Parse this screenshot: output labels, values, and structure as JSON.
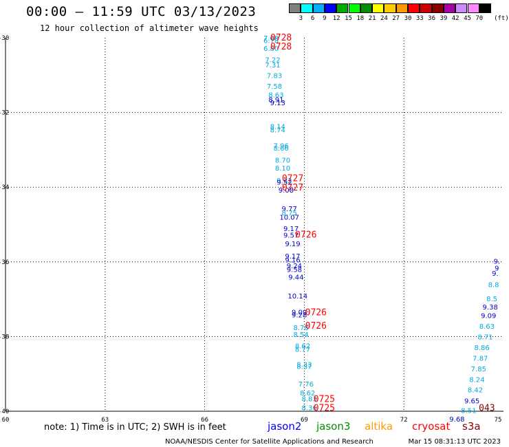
{
  "header": {
    "title": "00:00 – 11:59 UTC 03/13/2023",
    "subtitle": "12 hour collection of altimeter wave heights"
  },
  "legend": {
    "colors": [
      "#808080",
      "#00ffff",
      "#00b0ff",
      "#0000ff",
      "#00aa00",
      "#00ff00",
      "#009000",
      "#ffff00",
      "#ffcc00",
      "#ff9900",
      "#ff0000",
      "#cc0000",
      "#880000",
      "#aa00aa",
      "#cc88ff",
      "#ff88ff",
      "#000000"
    ],
    "ticks": [
      "3",
      "6",
      "9",
      "12",
      "15",
      "18",
      "21",
      "24",
      "27",
      "30",
      "33",
      "36",
      "39",
      "42",
      "45",
      "70"
    ],
    "unit": "(ft)"
  },
  "footer": {
    "note": "note: 1) Time is in UTC; 2) SWH is in feet",
    "satellites": [
      {
        "name": "jason2",
        "color": "#0000ff"
      },
      {
        "name": "jason3",
        "color": "#009000"
      },
      {
        "name": "altika",
        "color": "#ff9900"
      },
      {
        "name": "cryosat",
        "color": "#ff0000"
      },
      {
        "name": "s3a",
        "color": "#880000"
      }
    ],
    "credit": "NOAA/NESDIS Center for Satellite Applications and Research",
    "timestamp": "Mar 15 08:31:13 UTC 2023"
  },
  "chart_data": {
    "type": "scatter",
    "xlim": [
      60,
      75
    ],
    "ylim": [
      -40,
      -30
    ],
    "x_ticks": [
      "60",
      "63",
      "66",
      "69",
      "72",
      "75"
    ],
    "y_ticks": [
      "-30",
      "-32",
      "-34",
      "-36",
      "-38",
      "-40"
    ],
    "grid": true,
    "points": [
      {
        "x": 68.0,
        "y": -30.0,
        "label": "7.08",
        "color": "#00aadd"
      },
      {
        "x": 68.0,
        "y": -30.06,
        "label": "6.78",
        "color": "#00aadd"
      },
      {
        "x": 68.0,
        "y": -30.28,
        "label": "6.80",
        "color": "#00aadd"
      },
      {
        "x": 68.05,
        "y": -30.58,
        "label": "7.22",
        "color": "#00aadd"
      },
      {
        "x": 68.05,
        "y": -30.72,
        "label": "7.31",
        "color": "#00aadd"
      },
      {
        "x": 68.1,
        "y": -31.0,
        "label": "7.83",
        "color": "#00aadd"
      },
      {
        "x": 68.1,
        "y": -31.29,
        "label": "7.58",
        "color": "#00aadd"
      },
      {
        "x": 68.15,
        "y": -31.52,
        "label": "8.63",
        "color": "#00aadd"
      },
      {
        "x": 68.15,
        "y": -31.65,
        "label": "8.91",
        "color": "#0000cc"
      },
      {
        "x": 68.2,
        "y": -31.73,
        "label": "9.13",
        "color": "#0000cc"
      },
      {
        "x": 68.2,
        "y": -32.37,
        "label": "8.14",
        "color": "#00aadd"
      },
      {
        "x": 68.2,
        "y": -32.46,
        "label": "8.74",
        "color": "#00aadd"
      },
      {
        "x": 68.3,
        "y": -32.88,
        "label": "7.96",
        "color": "#00aadd"
      },
      {
        "x": 68.3,
        "y": -32.95,
        "label": "8.66",
        "color": "#00aadd"
      },
      {
        "x": 68.35,
        "y": -33.27,
        "label": "8.70",
        "color": "#00aadd"
      },
      {
        "x": 68.35,
        "y": -33.48,
        "label": "8.10",
        "color": "#00aadd"
      },
      {
        "x": 68.4,
        "y": -33.81,
        "label": "9.32",
        "color": "#00aadd"
      },
      {
        "x": 68.4,
        "y": -33.86,
        "label": "9.52",
        "color": "#0000cc"
      },
      {
        "x": 68.45,
        "y": -34.07,
        "label": "9.08",
        "color": "#0000cc"
      },
      {
        "x": 68.55,
        "y": -34.57,
        "label": "9.77",
        "color": "#0000cc"
      },
      {
        "x": 68.55,
        "y": -34.68,
        "label": "8.75",
        "color": "#00aadd"
      },
      {
        "x": 68.55,
        "y": -34.8,
        "label": "10.07",
        "color": "#0000cc"
      },
      {
        "x": 68.6,
        "y": -35.1,
        "label": "9.17",
        "color": "#0000cc"
      },
      {
        "x": 68.6,
        "y": -35.28,
        "label": "9.57",
        "color": "#0000cc"
      },
      {
        "x": 68.65,
        "y": -35.51,
        "label": "9.19",
        "color": "#0000cc"
      },
      {
        "x": 68.65,
        "y": -35.84,
        "label": "9.17",
        "color": "#0000cc"
      },
      {
        "x": 68.65,
        "y": -35.94,
        "label": "9.16",
        "color": "#0000cc"
      },
      {
        "x": 68.7,
        "y": -36.1,
        "label": "9.24",
        "color": "#0000cc"
      },
      {
        "x": 68.7,
        "y": -36.2,
        "label": "9.58",
        "color": "#0000cc"
      },
      {
        "x": 68.75,
        "y": -36.4,
        "label": "9.44",
        "color": "#0000cc"
      },
      {
        "x": 68.8,
        "y": -36.91,
        "label": "10.14",
        "color": "#0000cc"
      },
      {
        "x": 68.85,
        "y": -37.34,
        "label": "9.09",
        "color": "#0000cc"
      },
      {
        "x": 68.85,
        "y": -37.41,
        "label": "9.28",
        "color": "#0000cc"
      },
      {
        "x": 68.9,
        "y": -37.75,
        "label": "8.78",
        "color": "#00aadd"
      },
      {
        "x": 68.9,
        "y": -37.94,
        "label": "8.54",
        "color": "#00aadd"
      },
      {
        "x": 68.95,
        "y": -38.24,
        "label": "8.62",
        "color": "#00aadd"
      },
      {
        "x": 68.95,
        "y": -38.33,
        "label": "8.77",
        "color": "#00aadd"
      },
      {
        "x": 69.0,
        "y": -38.74,
        "label": "8.33",
        "color": "#00aadd"
      },
      {
        "x": 69.0,
        "y": -38.79,
        "label": "8.37",
        "color": "#00aadd"
      },
      {
        "x": 69.05,
        "y": -39.26,
        "label": "7.76",
        "color": "#00aadd"
      },
      {
        "x": 69.1,
        "y": -39.5,
        "label": "8.62",
        "color": "#00aadd"
      },
      {
        "x": 69.15,
        "y": -39.66,
        "label": "8.83",
        "color": "#00aadd"
      },
      {
        "x": 69.15,
        "y": -39.9,
        "label": "8.36",
        "color": "#00aadd"
      },
      {
        "x": 74.8,
        "y": -35.98,
        "label": "9.",
        "color": "#0000cc"
      },
      {
        "x": 74.8,
        "y": -36.16,
        "label": "9",
        "color": "#0000cc"
      },
      {
        "x": 74.75,
        "y": -36.3,
        "label": "9.",
        "color": "#0000cc"
      },
      {
        "x": 74.7,
        "y": -36.6,
        "label": "8.8",
        "color": "#00aadd"
      },
      {
        "x": 74.65,
        "y": -36.98,
        "label": "8.5",
        "color": "#00aadd"
      },
      {
        "x": 74.6,
        "y": -37.2,
        "label": "9.38",
        "color": "#0000cc"
      },
      {
        "x": 74.55,
        "y": -37.43,
        "label": "9.09",
        "color": "#0000cc"
      },
      {
        "x": 74.5,
        "y": -37.72,
        "label": "8.63",
        "color": "#00aadd"
      },
      {
        "x": 74.45,
        "y": -38.0,
        "label": "8.71",
        "color": "#00aadd"
      },
      {
        "x": 74.35,
        "y": -38.29,
        "label": "8.86",
        "color": "#00aadd"
      },
      {
        "x": 74.3,
        "y": -38.57,
        "label": "7.87",
        "color": "#00aadd"
      },
      {
        "x": 74.25,
        "y": -38.86,
        "label": "7.85",
        "color": "#00aadd"
      },
      {
        "x": 74.2,
        "y": -39.14,
        "label": "8.24",
        "color": "#00aadd"
      },
      {
        "x": 74.15,
        "y": -39.42,
        "label": "8.42",
        "color": "#00aadd"
      },
      {
        "x": 74.05,
        "y": -39.71,
        "label": "9.65",
        "color": "#0000cc"
      },
      {
        "x": 73.95,
        "y": -39.97,
        "label": "8.51",
        "color": "#00aadd"
      },
      {
        "x": 73.6,
        "y": -40.2,
        "label": "9.68",
        "color": "#0000cc"
      }
    ],
    "time_labels": [
      {
        "x": 68.3,
        "y": -29.98,
        "label": "0728",
        "color": "#ff0000"
      },
      {
        "x": 68.3,
        "y": -30.22,
        "label": "0728",
        "color": "#ff0000"
      },
      {
        "x": 68.65,
        "y": -33.75,
        "label": "0727",
        "color": "#ff0000"
      },
      {
        "x": 68.65,
        "y": -34.0,
        "label": "0727",
        "color": "#ff0000"
      },
      {
        "x": 69.05,
        "y": -35.26,
        "label": "0726",
        "color": "#ff0000"
      },
      {
        "x": 69.35,
        "y": -37.34,
        "label": "0726",
        "color": "#ff0000"
      },
      {
        "x": 69.35,
        "y": -37.7,
        "label": "0726",
        "color": "#ff0000"
      },
      {
        "x": 69.6,
        "y": -39.66,
        "label": "0725",
        "color": "#ff0000"
      },
      {
        "x": 69.6,
        "y": -39.9,
        "label": "0725",
        "color": "#ff0000"
      },
      {
        "x": 74.5,
        "y": -39.9,
        "label": "043",
        "color": "#880000"
      }
    ]
  }
}
